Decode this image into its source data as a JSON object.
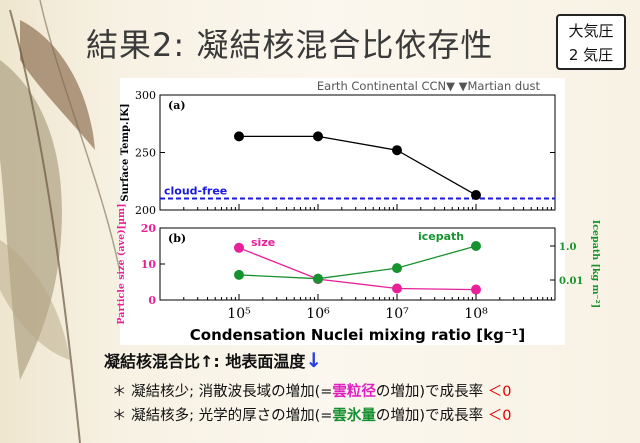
{
  "slide": {
    "title": "結果2: 凝結核混合比依存性",
    "pressure": {
      "line1": "大気圧",
      "line2": "2 気圧"
    }
  },
  "chart_data": [
    {
      "type": "line",
      "panel_label": "(a)",
      "top_note": "Earth Continental CCN▼  ▼Martian dust",
      "ylabel": "Surface Temp.[K]",
      "x": [
        100000,
        1000000,
        10000000,
        100000000
      ],
      "xscale": "log",
      "xlim": [
        10000,
        1000000000
      ],
      "ylim": [
        200,
        300
      ],
      "yticks": [
        200,
        250,
        300
      ],
      "series": [
        {
          "values": [
            264,
            264,
            252,
            213
          ],
          "color": "#000000"
        }
      ],
      "reference": {
        "label": "cloud-free",
        "value": 210,
        "color": "#1a1adf"
      }
    },
    {
      "type": "line",
      "panel_label": "(b)",
      "ylabel_left": "Particle size (ave)[µm]",
      "ylabel_right": "Icepath [kg m⁻²]",
      "x": [
        100000,
        1000000,
        10000000,
        100000000
      ],
      "xscale": "log",
      "xlim": [
        10000,
        1000000000
      ],
      "ylim_left": [
        0,
        20
      ],
      "yticks_left": [
        0,
        10,
        20
      ],
      "yticks_right_labels": [
        "1.0",
        "0.01"
      ],
      "series": [
        {
          "name": "size",
          "values": [
            14.5,
            5.8,
            3.2,
            2.9
          ],
          "color": "#e8209a",
          "axis": "left"
        },
        {
          "name": "icepath",
          "values": [
            0.02,
            0.012,
            0.05,
            1.0
          ],
          "color": "#16922e",
          "axis": "right"
        }
      ],
      "xtick_labels": [
        "10⁵",
        "10⁶",
        "10⁷",
        "10⁸"
      ],
      "xlabel": "Condensation Nuclei mixing ratio [kg⁻¹]"
    }
  ],
  "summary": {
    "head": "凝結核混合比",
    "up_arrow": "↑",
    "mid": ": 地表面温度",
    "down_arrow": "↓"
  },
  "points": [
    {
      "bullet": "＊",
      "a": "凝結核少; 消散波長域の増加(=",
      "key": "雲粒径",
      "b": "の増加)で成長率",
      "tail": "＜0"
    },
    {
      "bullet": "＊",
      "a": "凝結核多; 光学的厚さの増加(=",
      "key": "雲氷量",
      "b": "の増加)で成長率",
      "tail": "＜0"
    }
  ]
}
